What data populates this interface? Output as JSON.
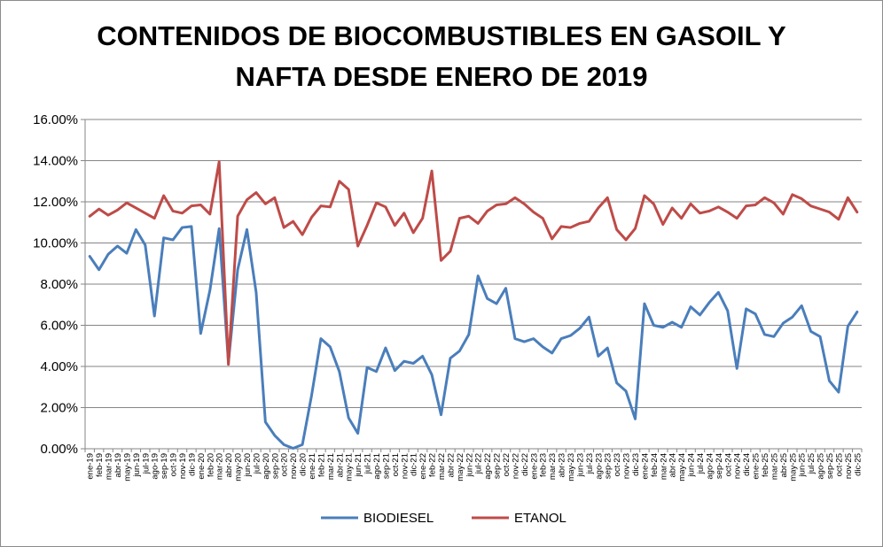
{
  "chart_data": {
    "type": "line",
    "title_lines": [
      "CONTENIDOS DE BIOCOMBUSTIBLES EN GASOIL Y",
      "NAFTA DESDE ENERO DE 2019"
    ],
    "ylim": [
      0,
      16
    ],
    "y_tick_labels": [
      "0.00%",
      "2.00%",
      "4.00%",
      "6.00%",
      "8.00%",
      "10.00%",
      "12.00%",
      "14.00%",
      "16.00%"
    ],
    "grid": "horizontal",
    "legend_position": "bottom",
    "categories": [
      "ene-19",
      "feb-19",
      "mar-19",
      "abr-19",
      "may-19",
      "jun-19",
      "jul-19",
      "ago-19",
      "sep-19",
      "oct-19",
      "nov-19",
      "dic-19",
      "ene-20",
      "feb-20",
      "mar-20",
      "abr-20",
      "may-20",
      "jun-20",
      "jul-20",
      "ago-20",
      "sep-20",
      "oct-20",
      "nov-20",
      "dic-20",
      "ene-21",
      "feb-21",
      "mar-21",
      "abr-21",
      "may-21",
      "jun-21",
      "jul-21",
      "ago-21",
      "sep-21",
      "oct-21",
      "nov-21",
      "dic-21",
      "ene-22",
      "feb-22",
      "mar-22",
      "abr-22",
      "may-22",
      "jun-22",
      "jul-22",
      "ago-22",
      "sep-22",
      "oct-22",
      "nov-22",
      "dic-22",
      "ene-23",
      "feb-23",
      "mar-23",
      "abr-23",
      "may-23",
      "jun-23",
      "jul-23",
      "ago-23",
      "sep-23",
      "oct-23",
      "nov-23",
      "dic-23",
      "ene-24",
      "feb-24",
      "mar-24",
      "abr-24",
      "may-24",
      "jun-24",
      "jul-24",
      "ago-24",
      "sep-24",
      "oct-24",
      "nov-24",
      "dic-24",
      "ene-25",
      "feb-25",
      "mar-25",
      "abr-25",
      "may-25",
      "jun-25",
      "jul-25",
      "ago-25",
      "sep-25",
      "oct-25",
      "nov-25",
      "dic-25"
    ],
    "series": [
      {
        "name": "BIODIESEL",
        "color": "#4a7ebb",
        "values": [
          9.35,
          8.7,
          9.45,
          9.85,
          9.5,
          10.65,
          9.9,
          6.45,
          10.25,
          10.15,
          10.75,
          10.8,
          5.6,
          7.7,
          10.7,
          4.2,
          8.7,
          10.65,
          7.6,
          1.3,
          0.65,
          0.2,
          0.02,
          0.2,
          2.6,
          5.35,
          4.95,
          3.75,
          1.5,
          0.75,
          3.95,
          3.75,
          4.9,
          3.8,
          4.25,
          4.15,
          4.5,
          3.6,
          1.65,
          4.4,
          4.75,
          5.55,
          8.4,
          7.3,
          7.05,
          7.8,
          5.35,
          5.2,
          5.35,
          4.95,
          4.65,
          5.35,
          5.5,
          5.85,
          6.4,
          4.5,
          4.9,
          3.2,
          2.8,
          1.45,
          7.05,
          6.0,
          5.9,
          6.15,
          5.9,
          6.9,
          6.5,
          7.1,
          7.6,
          6.7,
          3.9,
          6.8,
          6.55,
          5.55,
          5.45,
          6.1,
          6.4,
          6.95,
          5.7,
          5.45,
          3.3,
          2.75,
          5.95,
          6.65
        ]
      },
      {
        "name": "ETANOL",
        "color": "#be4b48",
        "values": [
          11.3,
          11.65,
          11.35,
          11.6,
          11.95,
          11.7,
          11.45,
          11.2,
          12.3,
          11.55,
          11.45,
          11.8,
          11.85,
          11.4,
          13.95,
          4.1,
          11.3,
          12.1,
          12.45,
          11.9,
          12.2,
          10.75,
          11.05,
          10.4,
          11.25,
          11.8,
          11.75,
          13.0,
          12.6,
          9.85,
          10.85,
          11.95,
          11.75,
          10.85,
          11.45,
          10.5,
          11.2,
          13.5,
          9.15,
          9.6,
          11.2,
          11.3,
          10.95,
          11.55,
          11.85,
          11.9,
          12.2,
          11.9,
          11.5,
          11.2,
          10.2,
          10.8,
          10.75,
          10.95,
          11.05,
          11.7,
          12.2,
          10.65,
          10.15,
          10.7,
          12.3,
          11.9,
          10.9,
          11.7,
          11.2,
          11.9,
          11.45,
          11.55,
          11.75,
          11.5,
          11.2,
          11.8,
          11.85,
          12.2,
          11.95,
          11.4,
          12.35,
          12.15,
          11.8,
          11.65,
          11.5,
          11.15,
          12.2,
          11.5
        ]
      }
    ]
  }
}
